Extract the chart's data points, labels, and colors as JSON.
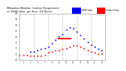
{
  "background_color": "#ffffff",
  "plot_bg_color": "#ffffff",
  "grid_color": "#aaaaaa",
  "title_color": "#000000",
  "temp_color": "#ff0000",
  "thsw_color": "#0000ff",
  "xlim": [
    0,
    24
  ],
  "ylim": [
    20,
    60
  ],
  "temp_data": [
    [
      0,
      24
    ],
    [
      1,
      24
    ],
    [
      2,
      24
    ],
    [
      3,
      23
    ],
    [
      4,
      23
    ],
    [
      5,
      23
    ],
    [
      6,
      23
    ],
    [
      7,
      24
    ],
    [
      8,
      26
    ],
    [
      9,
      27
    ],
    [
      10,
      28
    ],
    [
      11,
      28
    ],
    [
      12,
      29
    ],
    [
      13,
      30
    ],
    [
      14,
      31
    ],
    [
      15,
      32
    ],
    [
      16,
      32
    ],
    [
      17,
      31
    ],
    [
      18,
      30
    ],
    [
      19,
      28
    ],
    [
      20,
      27
    ],
    [
      21,
      26
    ],
    [
      22,
      25
    ],
    [
      23,
      25
    ]
  ],
  "thsw_data": [
    [
      3,
      27
    ],
    [
      4,
      27
    ],
    [
      5,
      28
    ],
    [
      6,
      29
    ],
    [
      7,
      30
    ],
    [
      8,
      31
    ],
    [
      9,
      34
    ],
    [
      10,
      37
    ],
    [
      11,
      40
    ],
    [
      12,
      42
    ],
    [
      13,
      46
    ],
    [
      14,
      48
    ],
    [
      15,
      47
    ],
    [
      16,
      44
    ],
    [
      17,
      41
    ],
    [
      18,
      38
    ],
    [
      19,
      35
    ],
    [
      20,
      33
    ],
    [
      21,
      31
    ],
    [
      22,
      29
    ],
    [
      23,
      28
    ]
  ],
  "red_line_x": [
    10.5,
    14.5
  ],
  "red_line_y": [
    38,
    38
  ],
  "dashed_lines_x": [
    4,
    8,
    12,
    16,
    20,
    24
  ],
  "ytick_values": [
    20,
    25,
    30,
    35,
    40,
    45,
    50,
    55,
    60
  ],
  "xtick_values": [
    1,
    3,
    5,
    7,
    9,
    11,
    13,
    15,
    17,
    19,
    21,
    23
  ],
  "marker_size": 1.5,
  "title_left": "Milwaukee Weather  Outdoor Temperature",
  "title_right": "vs THSW Index\nper Hour\n(24 Hours)",
  "legend_label_thsw": "THSW Index",
  "legend_label_temp": "Outdoor Temp"
}
